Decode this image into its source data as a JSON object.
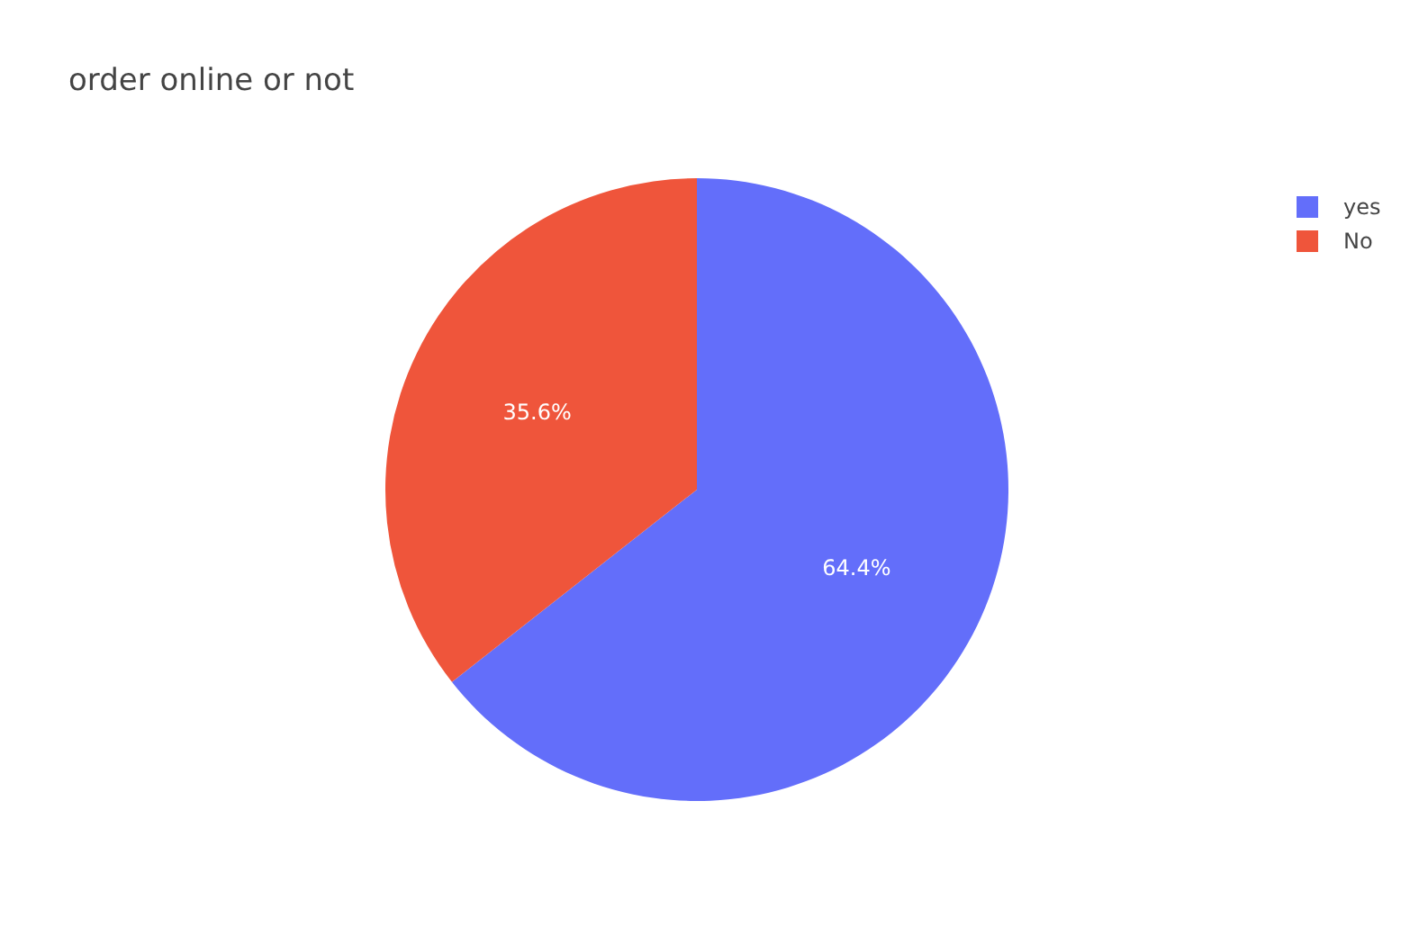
{
  "chart_data": {
    "type": "pie",
    "title": "order online or not",
    "categories": [
      "yes",
      "No"
    ],
    "values": [
      64.4,
      35.6
    ],
    "colors": [
      "#636efa",
      "#ef553b"
    ],
    "value_labels": [
      "64.4%",
      "35.6%"
    ],
    "legend": "top right"
  }
}
